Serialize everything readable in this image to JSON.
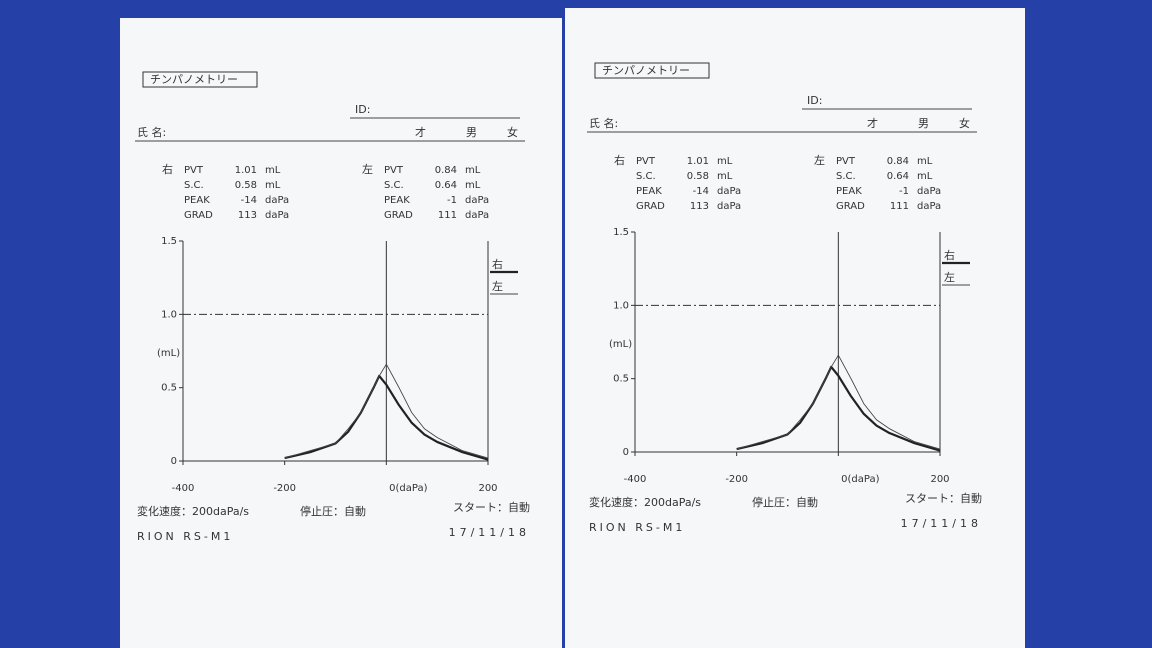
{
  "sheets": [
    {
      "title": "チンパノメトリー",
      "id_label": "ID:",
      "name_label": "氏 名:",
      "age": "才",
      "male": "男",
      "female": "女",
      "right": {
        "side": "右",
        "rows": [
          [
            "PVT",
            "1.01",
            "mL"
          ],
          [
            "S.C.",
            "0.58",
            "mL"
          ],
          [
            "PEAK",
            "-14",
            "daPa"
          ],
          [
            "GRAD",
            "113",
            "daPa"
          ]
        ]
      },
      "left": {
        "side": "左",
        "rows": [
          [
            "PVT",
            "0.84",
            "mL"
          ],
          [
            "S.C.",
            "0.64",
            "mL"
          ],
          [
            "PEAK",
            "-1",
            "daPa"
          ],
          [
            "GRAD",
            "111",
            "daPa"
          ]
        ]
      },
      "chart_data": {
        "type": "line",
        "y_label": "(mL)",
        "x": [
          -200,
          -150,
          -100,
          -75,
          -50,
          -25,
          -14,
          0,
          25,
          50,
          75,
          100,
          150,
          200
        ],
        "series": [
          {
            "name": "右",
            "color": "#222",
            "width": 2.2,
            "values": [
              0.02,
              0.06,
              0.12,
              0.2,
              0.33,
              0.5,
              0.58,
              0.52,
              0.38,
              0.26,
              0.18,
              0.13,
              0.06,
              0.01
            ]
          },
          {
            "name": "左",
            "color": "#444",
            "width": 0.9,
            "values": [
              0.02,
              0.07,
              0.12,
              0.22,
              0.33,
              0.5,
              0.58,
              0.66,
              0.5,
              0.33,
              0.22,
              0.16,
              0.07,
              0.02
            ]
          }
        ],
        "xlim": [
          -400,
          200
        ],
        "ylim": [
          0,
          1.5
        ],
        "xticks": [
          -400,
          -200,
          {
            "value": 0,
            "label": "0(daPa)"
          },
          200
        ],
        "yticks": [
          0,
          0.5,
          {
            "value": 1,
            "label": "1.0"
          },
          1.5
        ],
        "reference_line": 1
      },
      "footer": {
        "rate": "変化速度：200daPa/s",
        "stop": "停止圧：自動",
        "start": "スタート：自動",
        "model": "RION RS-M1",
        "date": "17/11/18"
      }
    },
    {
      "title": "チンパノメトリー",
      "id_label": "ID:",
      "name_label": "氏 名:",
      "age": "才",
      "male": "男",
      "female": "女",
      "right": {
        "side": "右",
        "rows": [
          [
            "PVT",
            "1.01",
            "mL"
          ],
          [
            "S.C.",
            "0.58",
            "mL"
          ],
          [
            "PEAK",
            "-14",
            "daPa"
          ],
          [
            "GRAD",
            "113",
            "daPa"
          ]
        ]
      },
      "left": {
        "side": "左",
        "rows": [
          [
            "PVT",
            "0.84",
            "mL"
          ],
          [
            "S.C.",
            "0.64",
            "mL"
          ],
          [
            "PEAK",
            "-1",
            "daPa"
          ],
          [
            "GRAD",
            "111",
            "daPa"
          ]
        ]
      },
      "chart_data": {
        "type": "line",
        "y_label": "(mL)",
        "x": [
          -200,
          -150,
          -100,
          -75,
          -50,
          -25,
          -14,
          0,
          25,
          50,
          75,
          100,
          150,
          200
        ],
        "series": [
          {
            "name": "右",
            "color": "#222",
            "width": 2.2,
            "values": [
              0.02,
              0.06,
              0.12,
              0.2,
              0.33,
              0.5,
              0.58,
              0.52,
              0.38,
              0.26,
              0.18,
              0.13,
              0.06,
              0.01
            ]
          },
          {
            "name": "左",
            "color": "#444",
            "width": 0.9,
            "values": [
              0.02,
              0.07,
              0.12,
              0.22,
              0.33,
              0.5,
              0.58,
              0.66,
              0.5,
              0.33,
              0.22,
              0.16,
              0.07,
              0.02
            ]
          }
        ],
        "xlim": [
          -400,
          200
        ],
        "ylim": [
          0,
          1.5
        ],
        "xticks": [
          -400,
          -200,
          {
            "value": 0,
            "label": "0(daPa)"
          },
          200
        ],
        "yticks": [
          0,
          0.5,
          {
            "value": 1,
            "label": "1.0"
          },
          1.5
        ],
        "reference_line": 1
      },
      "footer": {
        "rate": "変化速度：200daPa/s",
        "stop": "停止圧：自動",
        "start": "スタート：自動",
        "model": "RION RS-M1",
        "date": "17/11/18"
      }
    }
  ]
}
